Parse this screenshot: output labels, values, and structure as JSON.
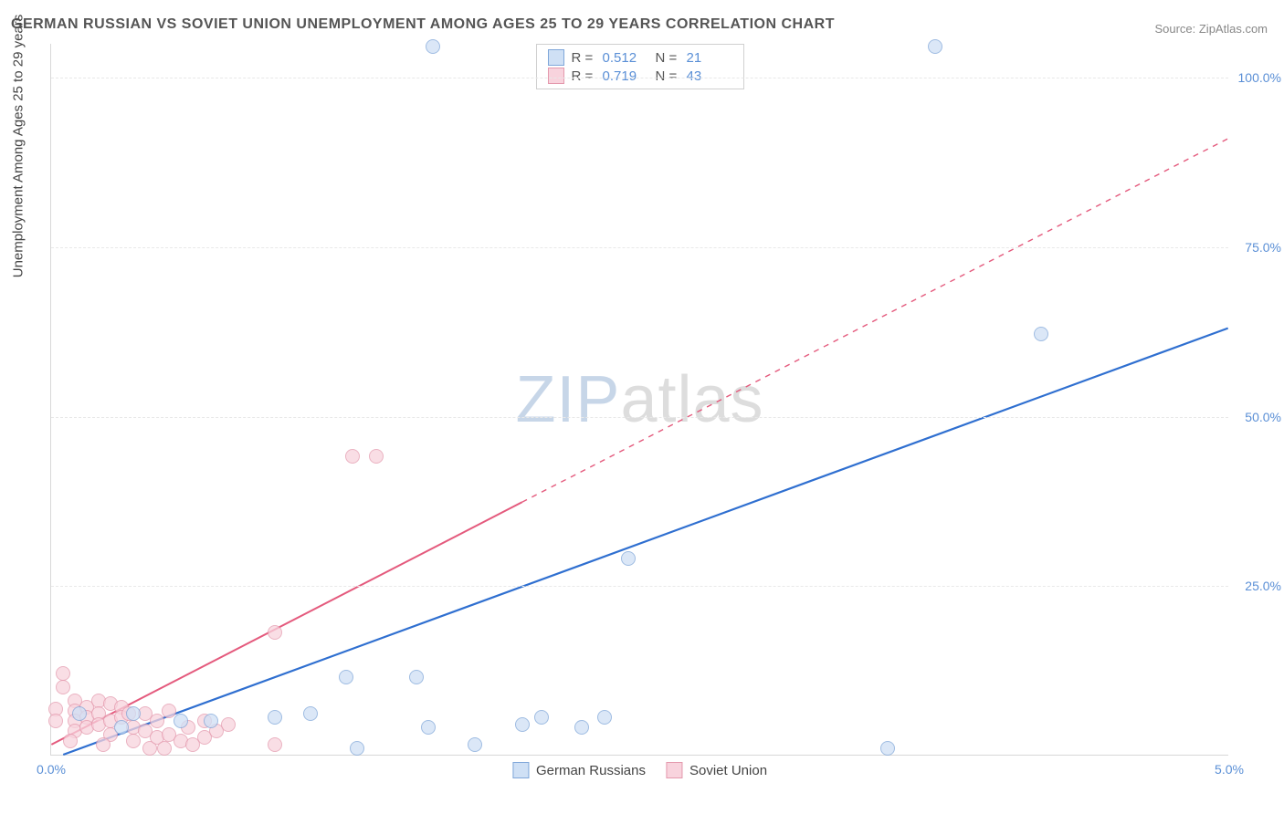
{
  "title": "GERMAN RUSSIAN VS SOVIET UNION UNEMPLOYMENT AMONG AGES 25 TO 29 YEARS CORRELATION CHART",
  "source": "Source: ZipAtlas.com",
  "y_axis_label": "Unemployment Among Ages 25 to 29 years",
  "watermark": {
    "part1": "ZIP",
    "part2": "atlas"
  },
  "chart": {
    "type": "scatter",
    "xlim": [
      0.0,
      5.0
    ],
    "ylim": [
      0.0,
      105.0
    ],
    "x_ticks": [
      {
        "value": 0.0,
        "label": "0.0%"
      },
      {
        "value": 5.0,
        "label": "5.0%"
      }
    ],
    "y_ticks": [
      {
        "value": 25.0,
        "label": "25.0%"
      },
      {
        "value": 50.0,
        "label": "50.0%"
      },
      {
        "value": 75.0,
        "label": "75.0%"
      },
      {
        "value": 100.0,
        "label": "100.0%"
      }
    ],
    "background_color": "#ffffff",
    "grid_color": "#e8e8e8",
    "series": [
      {
        "name": "German Russians",
        "marker_radius": 8,
        "fill_color": "#cfe0f5",
        "stroke_color": "#7fa6d9",
        "fill_opacity": 0.75,
        "correlation": {
          "R": "0.512",
          "N": "21"
        },
        "trend_line": {
          "color": "#2f6fd0",
          "width": 2.2,
          "solid_until_x": 5.0,
          "x1": 0.05,
          "y1": 0.0,
          "x2": 5.0,
          "y2": 63.0
        },
        "points": [
          {
            "x": 1.62,
            "y": 104.5
          },
          {
            "x": 3.75,
            "y": 104.5
          },
          {
            "x": 4.2,
            "y": 62.0
          },
          {
            "x": 2.45,
            "y": 29.0
          },
          {
            "x": 3.55,
            "y": 1.0
          },
          {
            "x": 1.25,
            "y": 11.5
          },
          {
            "x": 1.55,
            "y": 11.5
          },
          {
            "x": 1.6,
            "y": 4.0
          },
          {
            "x": 1.8,
            "y": 1.5
          },
          {
            "x": 2.0,
            "y": 4.5
          },
          {
            "x": 2.08,
            "y": 5.5
          },
          {
            "x": 2.25,
            "y": 4.0
          },
          {
            "x": 2.35,
            "y": 5.5
          },
          {
            "x": 1.1,
            "y": 6.0
          },
          {
            "x": 0.95,
            "y": 5.5
          },
          {
            "x": 1.3,
            "y": 1.0
          },
          {
            "x": 0.55,
            "y": 5.0
          },
          {
            "x": 0.68,
            "y": 5.0
          },
          {
            "x": 0.35,
            "y": 6.0
          },
          {
            "x": 0.12,
            "y": 6.0
          },
          {
            "x": 0.3,
            "y": 4.0
          }
        ]
      },
      {
        "name": "Soviet Union",
        "marker_radius": 8,
        "fill_color": "#f8d3dd",
        "stroke_color": "#e499ad",
        "fill_opacity": 0.75,
        "correlation": {
          "R": "0.719",
          "N": "43"
        },
        "trend_line": {
          "color": "#e45a7d",
          "width": 2.0,
          "solid_until_x": 2.0,
          "dash": "6,6",
          "x1": 0.0,
          "y1": 1.5,
          "x2": 5.0,
          "y2": 91.0
        },
        "points": [
          {
            "x": 1.28,
            "y": 44.0
          },
          {
            "x": 1.38,
            "y": 44.0
          },
          {
            "x": 0.95,
            "y": 18.0
          },
          {
            "x": 0.95,
            "y": 1.5
          },
          {
            "x": 0.05,
            "y": 12.0
          },
          {
            "x": 0.05,
            "y": 10.0
          },
          {
            "x": 0.1,
            "y": 8.0
          },
          {
            "x": 0.1,
            "y": 6.5
          },
          {
            "x": 0.1,
            "y": 5.0
          },
          {
            "x": 0.1,
            "y": 3.5
          },
          {
            "x": 0.02,
            "y": 6.8
          },
          {
            "x": 0.02,
            "y": 5.0
          },
          {
            "x": 0.15,
            "y": 7.0
          },
          {
            "x": 0.15,
            "y": 5.5
          },
          {
            "x": 0.15,
            "y": 4.0
          },
          {
            "x": 0.2,
            "y": 8.0
          },
          {
            "x": 0.2,
            "y": 6.0
          },
          {
            "x": 0.2,
            "y": 4.5
          },
          {
            "x": 0.25,
            "y": 7.5
          },
          {
            "x": 0.25,
            "y": 5.0
          },
          {
            "x": 0.25,
            "y": 3.0
          },
          {
            "x": 0.3,
            "y": 7.0
          },
          {
            "x": 0.3,
            "y": 5.5
          },
          {
            "x": 0.35,
            "y": 4.0
          },
          {
            "x": 0.35,
            "y": 2.0
          },
          {
            "x": 0.4,
            "y": 6.0
          },
          {
            "x": 0.4,
            "y": 3.5
          },
          {
            "x": 0.42,
            "y": 1.0
          },
          {
            "x": 0.45,
            "y": 5.0
          },
          {
            "x": 0.45,
            "y": 2.5
          },
          {
            "x": 0.5,
            "y": 6.5
          },
          {
            "x": 0.5,
            "y": 3.0
          },
          {
            "x": 0.55,
            "y": 2.0
          },
          {
            "x": 0.58,
            "y": 4.0
          },
          {
            "x": 0.6,
            "y": 1.5
          },
          {
            "x": 0.65,
            "y": 5.0
          },
          {
            "x": 0.65,
            "y": 2.5
          },
          {
            "x": 0.7,
            "y": 3.5
          },
          {
            "x": 0.75,
            "y": 4.5
          },
          {
            "x": 0.22,
            "y": 1.5
          },
          {
            "x": 0.08,
            "y": 2.0
          },
          {
            "x": 0.48,
            "y": 1.0
          },
          {
            "x": 0.33,
            "y": 6.0
          }
        ]
      }
    ]
  },
  "legend_top": {
    "r_label": "R =",
    "n_label": "N ="
  },
  "legend_bottom": [
    {
      "label": "German Russians",
      "fill": "#cfe0f5",
      "stroke": "#7fa6d9"
    },
    {
      "label": "Soviet Union",
      "fill": "#f8d3dd",
      "stroke": "#e499ad"
    }
  ]
}
